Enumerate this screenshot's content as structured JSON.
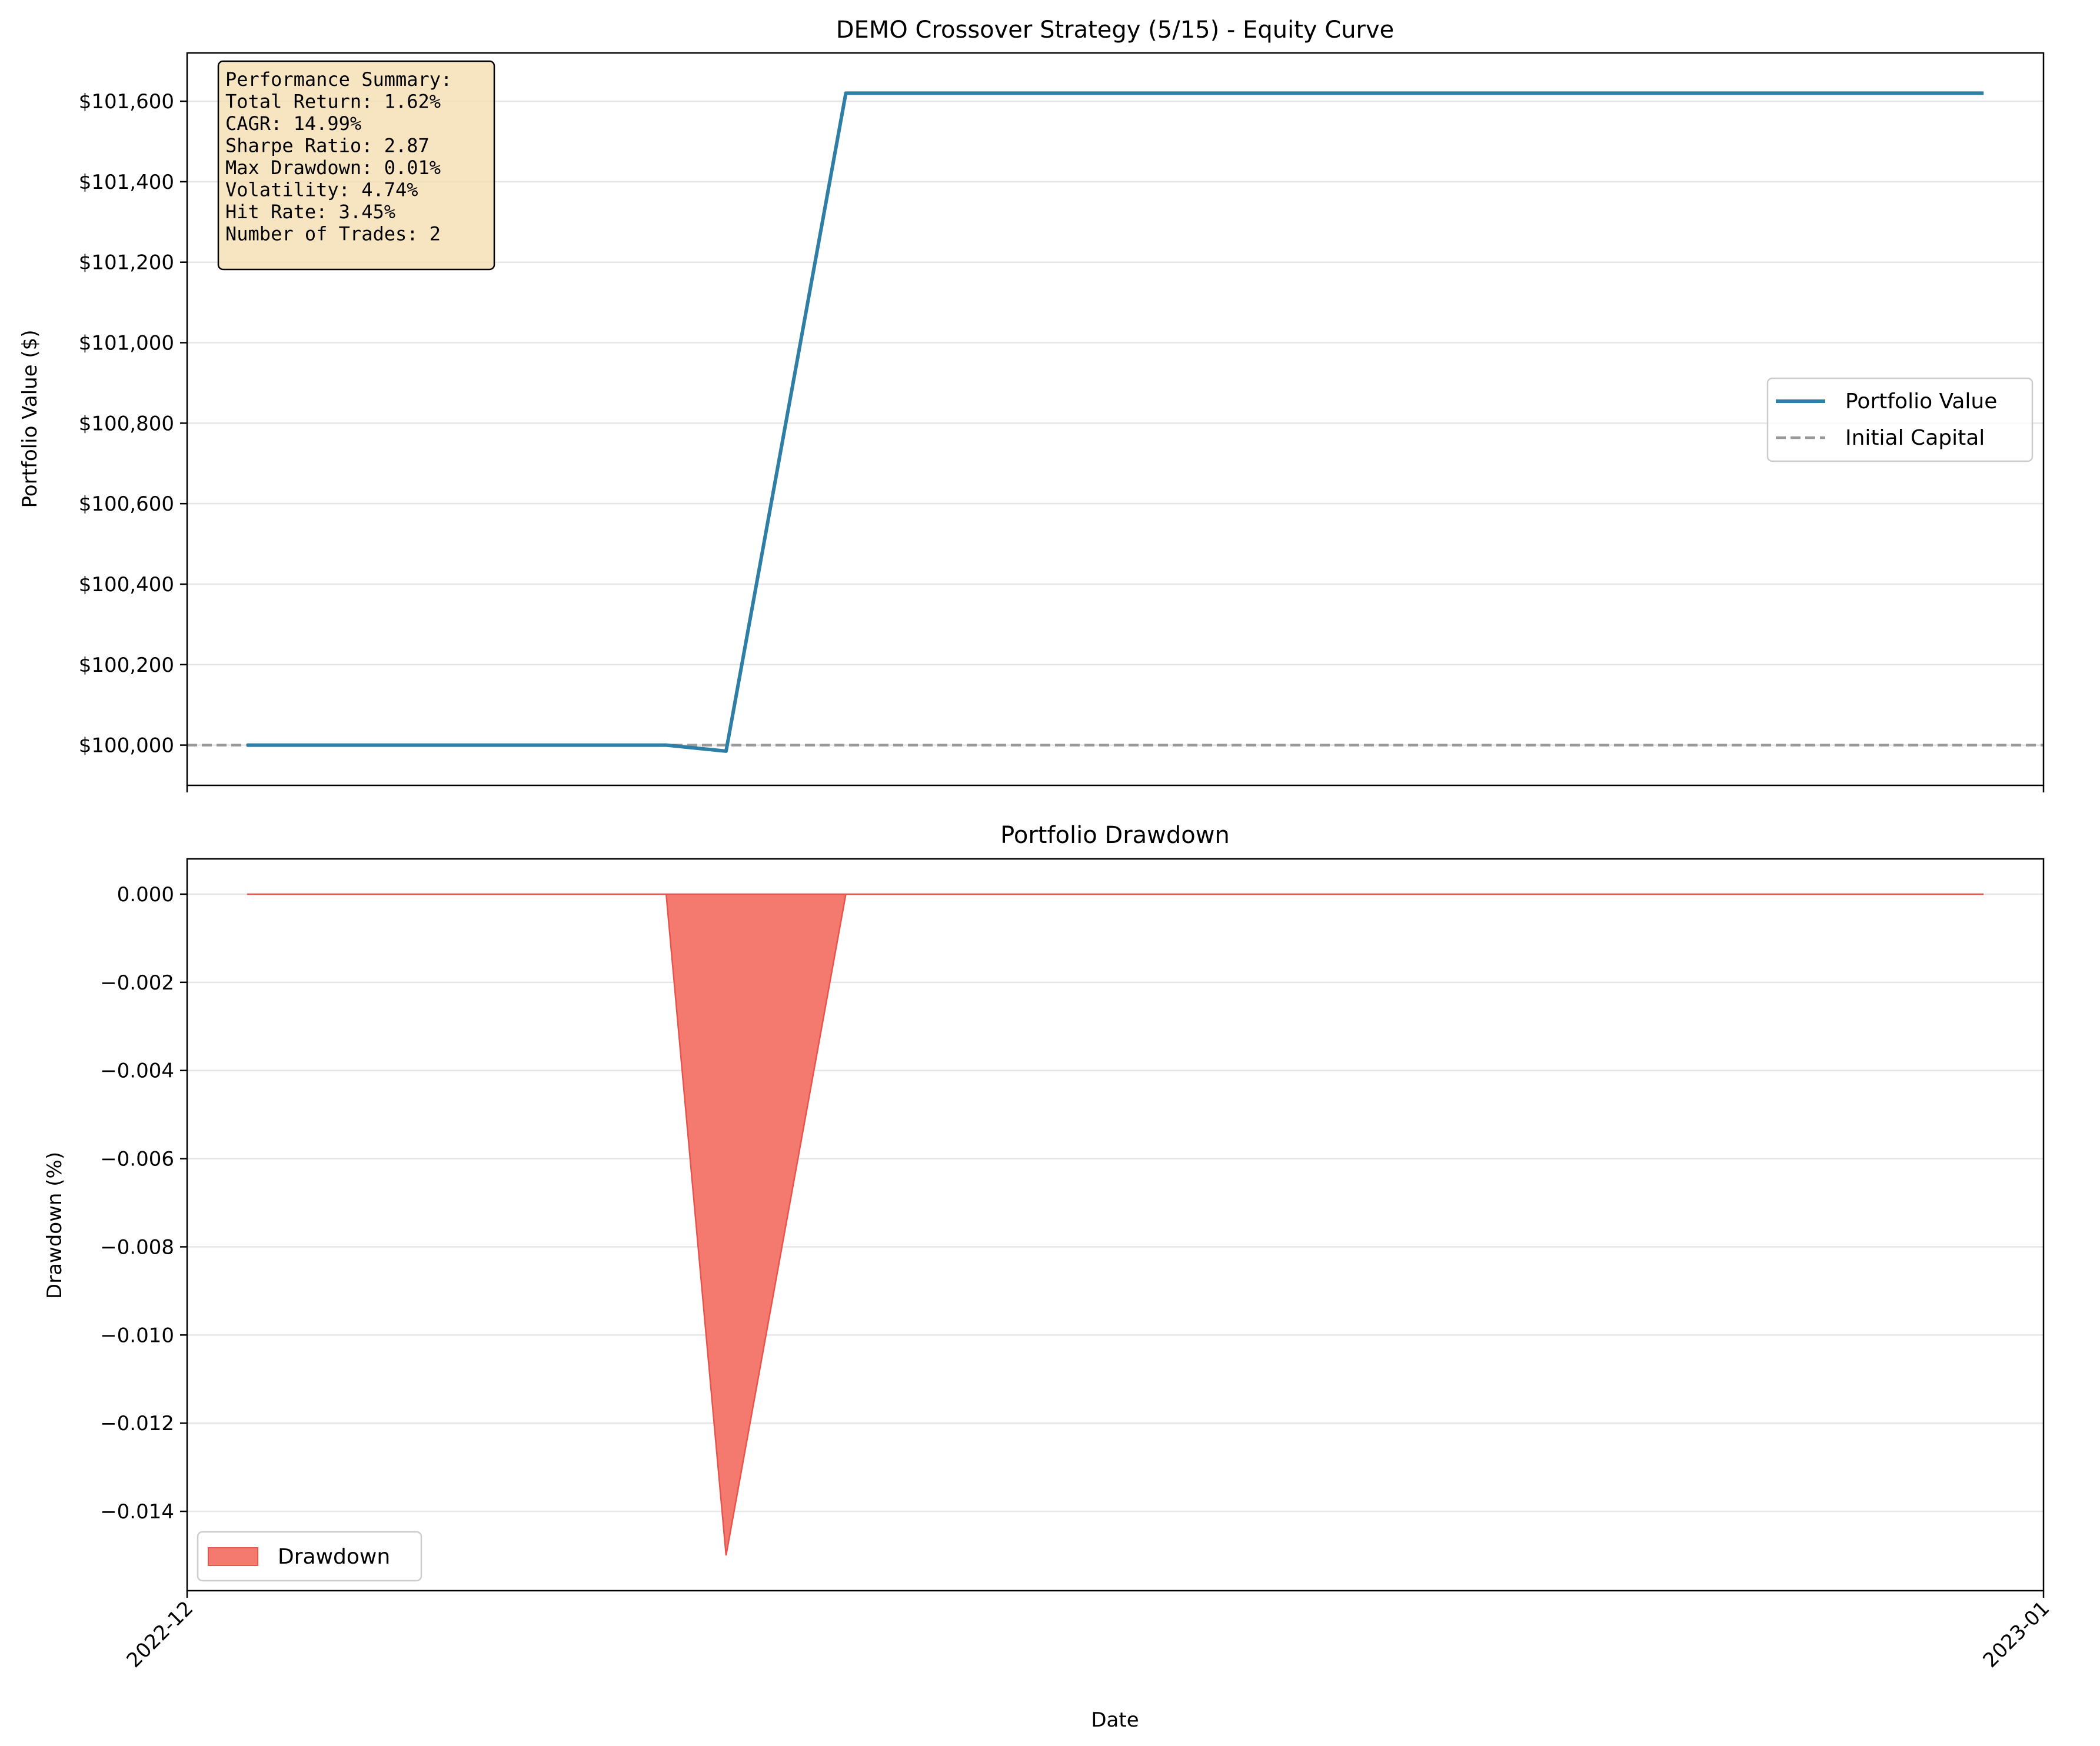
{
  "chart_data": [
    {
      "type": "line",
      "title": "DEMO Crossover Strategy (5/15) - Equity Curve",
      "xlabel": "",
      "ylabel": "Portfolio Value ($)",
      "x_axis": {
        "type": "date",
        "start": "2022-12-01",
        "end": "2023-01-01",
        "show_tick_labels": false
      },
      "ylim": [
        99900,
        101720
      ],
      "yticks": [
        100000,
        100200,
        100400,
        100600,
        100800,
        101000,
        101200,
        101400,
        101600
      ],
      "ytick_labels": [
        "$100,000",
        "$100,200",
        "$100,400",
        "$100,600",
        "$100,800",
        "$101,000",
        "$101,200",
        "$101,400",
        "$101,600"
      ],
      "grid": "horizontal",
      "legend_position": "center-right",
      "series": [
        {
          "name": "Portfolio Value",
          "color": "#2e7ea6",
          "style": "solid",
          "points": [
            {
              "x": "2022-12-02",
              "y": 100000
            },
            {
              "x": "2022-12-09",
              "y": 100000
            },
            {
              "x": "2022-12-10",
              "y": 99985
            },
            {
              "x": "2022-12-12",
              "y": 101620
            },
            {
              "x": "2022-12-31",
              "y": 101620
            }
          ]
        },
        {
          "name": "Initial Capital",
          "color": "#999999",
          "style": "dashed",
          "constant_y": 100000
        }
      ],
      "annotation": {
        "position": "top-left",
        "lines": [
          "Performance Summary:",
          "Total Return: 1.62%",
          "CAGR: 14.99%",
          "Sharpe Ratio: 2.87",
          "Max Drawdown: 0.01%",
          "Volatility: 4.74%",
          "Hit Rate: 3.45%",
          "Number of Trades: 2"
        ]
      }
    },
    {
      "type": "area",
      "title": "Portfolio Drawdown",
      "xlabel": "Date",
      "ylabel": "Drawdown (%)",
      "x_axis": {
        "type": "date",
        "start": "2022-12-01",
        "end": "2023-01-01"
      },
      "xticks": [
        "2022-12-01",
        "2023-01-01"
      ],
      "xtick_labels": [
        "2022-12",
        "2023-01"
      ],
      "ylim": [
        -0.0158,
        0.0008
      ],
      "yticks": [
        0.0,
        -0.002,
        -0.004,
        -0.006,
        -0.008,
        -0.01,
        -0.012,
        -0.014
      ],
      "ytick_labels": [
        "0.000",
        "−0.002",
        "−0.004",
        "−0.006",
        "−0.008",
        "−0.010",
        "−0.012",
        "−0.014"
      ],
      "grid": "horizontal",
      "legend_position": "lower-left",
      "series": [
        {
          "name": "Drawdown",
          "color": "#f47a6f",
          "edge_color": "#e8534a",
          "points": [
            {
              "x": "2022-12-02",
              "y": 0.0
            },
            {
              "x": "2022-12-09",
              "y": 0.0
            },
            {
              "x": "2022-12-10",
              "y": -0.015
            },
            {
              "x": "2022-12-12",
              "y": 0.0
            },
            {
              "x": "2022-12-31",
              "y": 0.0
            }
          ]
        }
      ]
    }
  ]
}
